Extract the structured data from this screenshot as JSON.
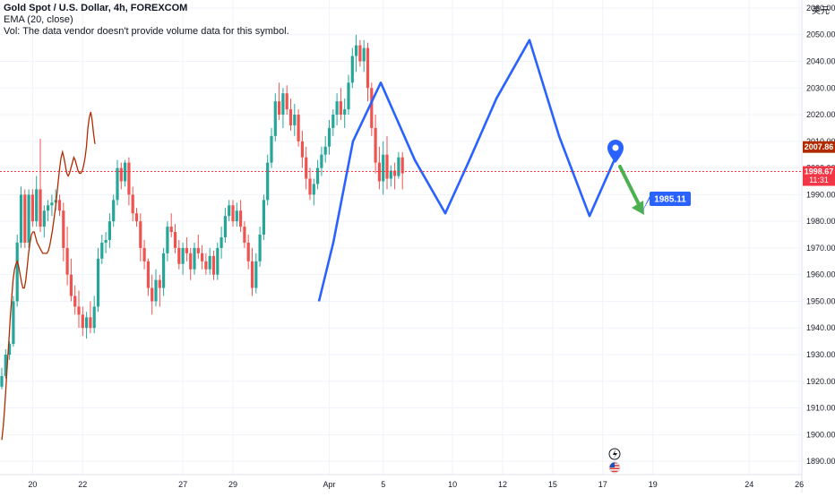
{
  "header": {
    "symbol_line": "Gold Spot / U.S. Dollar, 4h, FOREXCOM",
    "indicator_line": "EMA (20, close)",
    "volume_note": "Vol: The data vendor doesn't provide volume data for this symbol.",
    "currency": "美元"
  },
  "colors": {
    "up": "#26a69a",
    "down": "#ef5350",
    "ema": "#b22a00",
    "pattern": "#2962ff",
    "arrow": "#4caf50",
    "current_price_bg": "#f23645",
    "ema_tag_bg": "#b22a00",
    "callout_bg": "#2962ff"
  },
  "chart_data": {
    "type": "candlestick",
    "symbol": "Gold Spot / U.S. Dollar",
    "timeframe": "4h",
    "ylim": [
      1885,
      2063
    ],
    "y_ticks": [
      1890,
      1900,
      1910,
      1920,
      1930,
      1940,
      1950,
      1960,
      1970,
      1980,
      1990,
      2000,
      2010,
      2020,
      2030,
      2040,
      2050,
      2060
    ],
    "x_ticks": [
      {
        "label": "20",
        "bar": 8
      },
      {
        "label": "22",
        "bar": 21
      },
      {
        "label": "27",
        "bar": 47
      },
      {
        "label": "29",
        "bar": 60
      },
      {
        "label": "Apr",
        "bar": 85
      },
      {
        "label": "5",
        "bar": 99
      },
      {
        "label": "10",
        "bar": 117
      },
      {
        "label": "12",
        "bar": 130
      },
      {
        "label": "15",
        "bar": 143
      },
      {
        "label": "17",
        "bar": 156
      },
      {
        "label": "19",
        "bar": 169
      },
      {
        "label": "24",
        "bar": 194
      },
      {
        "label": "26",
        "bar": 207
      }
    ],
    "ohlc": [
      [
        1918,
        1925,
        1917,
        1922
      ],
      [
        1922,
        1932,
        1921,
        1930
      ],
      [
        1930,
        1935,
        1928,
        1934
      ],
      [
        1934,
        1952,
        1933,
        1950
      ],
      [
        1950,
        1975,
        1948,
        1972
      ],
      [
        1972,
        1993,
        1970,
        1990
      ],
      [
        1990,
        1992,
        1970,
        1972
      ],
      [
        1972,
        1992,
        1970,
        1990
      ],
      [
        1990,
        1992,
        1978,
        1980
      ],
      [
        1980,
        1997,
        1978,
        1992
      ],
      [
        1992,
        2011,
        1976,
        1978
      ],
      [
        1978,
        1986,
        1974,
        1984
      ],
      [
        1984,
        1988,
        1980,
        1986
      ],
      [
        1986,
        1990,
        1982,
        1987
      ],
      [
        1987,
        1992,
        1984,
        1988
      ],
      [
        1988,
        1990,
        1982,
        1984
      ],
      [
        1984,
        1987,
        1965,
        1970
      ],
      [
        1970,
        1978,
        1956,
        1960
      ],
      [
        1960,
        1966,
        1950,
        1952
      ],
      [
        1952,
        1956,
        1945,
        1948
      ],
      [
        1948,
        1954,
        1940,
        1945
      ],
      [
        1945,
        1948,
        1937,
        1940
      ],
      [
        1940,
        1946,
        1936,
        1944
      ],
      [
        1944,
        1950,
        1938,
        1940
      ],
      [
        1940,
        1952,
        1938,
        1948
      ],
      [
        1948,
        1970,
        1946,
        1966
      ],
      [
        1966,
        1975,
        1964,
        1972
      ],
      [
        1972,
        1976,
        1968,
        1973
      ],
      [
        1973,
        1983,
        1970,
        1980
      ],
      [
        1980,
        1990,
        1978,
        1988
      ],
      [
        1988,
        2003,
        1986,
        2000
      ],
      [
        2000,
        2002,
        1992,
        1995
      ],
      [
        1995,
        2003,
        1993,
        2002
      ],
      [
        2002,
        2004,
        1986,
        1990
      ],
      [
        1990,
        1993,
        1980,
        1983
      ],
      [
        1983,
        1985,
        1978,
        1980
      ],
      [
        1980,
        1983,
        1965,
        1970
      ],
      [
        1970,
        1973,
        1962,
        1965
      ],
      [
        1965,
        1966,
        1952,
        1955
      ],
      [
        1955,
        1960,
        1945,
        1950
      ],
      [
        1950,
        1962,
        1948,
        1958
      ],
      [
        1958,
        1960,
        1948,
        1955
      ],
      [
        1955,
        1970,
        1952,
        1968
      ],
      [
        1968,
        1980,
        1965,
        1978
      ],
      [
        1978,
        1983,
        1974,
        1976
      ],
      [
        1976,
        1979,
        1968,
        1970
      ],
      [
        1970,
        1973,
        1962,
        1964
      ],
      [
        1964,
        1972,
        1960,
        1970
      ],
      [
        1970,
        1974,
        1965,
        1968
      ],
      [
        1968,
        1970,
        1958,
        1962
      ],
      [
        1962,
        1972,
        1960,
        1970
      ],
      [
        1970,
        1975,
        1966,
        1968
      ],
      [
        1968,
        1971,
        1962,
        1965
      ],
      [
        1965,
        1968,
        1960,
        1962
      ],
      [
        1962,
        1970,
        1960,
        1967
      ],
      [
        1967,
        1969,
        1958,
        1960
      ],
      [
        1960,
        1972,
        1958,
        1970
      ],
      [
        1970,
        1978,
        1966,
        1974
      ],
      [
        1974,
        1985,
        1972,
        1982
      ],
      [
        1982,
        1988,
        1980,
        1986
      ],
      [
        1986,
        1988,
        1978,
        1980
      ],
      [
        1980,
        1987,
        1978,
        1984
      ],
      [
        1984,
        1988,
        1976,
        1978
      ],
      [
        1978,
        1980,
        1970,
        1972
      ],
      [
        1972,
        1975,
        1962,
        1965
      ],
      [
        1965,
        1970,
        1952,
        1955
      ],
      [
        1955,
        1968,
        1953,
        1965
      ],
      [
        1965,
        1978,
        1963,
        1975
      ],
      [
        1975,
        1990,
        1973,
        1988
      ],
      [
        1988,
        2005,
        1986,
        2002
      ],
      [
        2002,
        2015,
        2000,
        2012
      ],
      [
        2012,
        2028,
        2010,
        2025
      ],
      [
        2025,
        2032,
        2018,
        2020
      ],
      [
        2020,
        2030,
        2015,
        2028
      ],
      [
        2028,
        2031,
        2020,
        2022
      ],
      [
        2022,
        2026,
        2014,
        2016
      ],
      [
        2016,
        2024,
        2012,
        2020
      ],
      [
        2020,
        2022,
        2008,
        2010
      ],
      [
        2010,
        2014,
        2000,
        2004
      ],
      [
        2004,
        2008,
        1992,
        1996
      ],
      [
        1996,
        2000,
        1988,
        1990
      ],
      [
        1990,
        1996,
        1986,
        1994
      ],
      [
        1994,
        2003,
        1992,
        2000
      ],
      [
        2000,
        2008,
        1997,
        2005
      ],
      [
        2005,
        2012,
        2002,
        2008
      ],
      [
        2008,
        2018,
        2005,
        2015
      ],
      [
        2015,
        2022,
        2012,
        2020
      ],
      [
        2020,
        2028,
        2016,
        2025
      ],
      [
        2025,
        2030,
        2018,
        2020
      ],
      [
        2020,
        2026,
        2015,
        2022
      ],
      [
        2022,
        2035,
        2020,
        2032
      ],
      [
        2032,
        2045,
        2030,
        2042
      ],
      [
        2042,
        2050,
        2036,
        2046
      ],
      [
        2046,
        2048,
        2038,
        2040
      ],
      [
        2040,
        2048,
        2036,
        2045
      ],
      [
        2045,
        2047,
        2025,
        2030
      ],
      [
        2030,
        2032,
        2012,
        2015
      ],
      [
        2015,
        2020,
        1998,
        2002
      ],
      [
        2002,
        2008,
        1992,
        1995
      ],
      [
        1995,
        2010,
        1990,
        2005
      ],
      [
        2005,
        2012,
        1992,
        1996
      ],
      [
        1996,
        2001,
        1993,
        1999
      ],
      [
        1999,
        2002,
        1992,
        1997
      ],
      [
        1997,
        2006,
        1996,
        2004
      ],
      [
        2004,
        2006,
        1992,
        1998
      ]
    ],
    "ema": [
      1898,
      1903,
      1910,
      1918,
      1927,
      1935,
      1944,
      1951,
      1958,
      1962,
      1964,
      1965,
      1963,
      1960,
      1957,
      1955,
      1955,
      1958,
      1963,
      1968,
      1972,
      1975,
      1976,
      1976,
      1974,
      1972,
      1971,
      1970,
      1969,
      1968,
      1968,
      1968,
      1968,
      1969,
      1971,
      1974,
      1977,
      1981,
      1985,
      1990,
      1995,
      2000,
      2004,
      2006,
      2004,
      2001,
      1998,
      1997,
      1998,
      2000,
      2002,
      2004,
      2003,
      2001,
      1999,
      1998,
      1998,
      1999,
      2001,
      2004,
      2008,
      2015,
      2019,
      2021,
      2018,
      2013,
      2009
    ],
    "ema_x_step": 3.2,
    "pattern_line": [
      [
        356,
        1950
      ],
      [
        372,
        1972
      ],
      [
        394,
        2010
      ],
      [
        425,
        2032
      ],
      [
        463,
        2003
      ],
      [
        497,
        1983
      ],
      [
        524,
        2003
      ],
      [
        554,
        2026
      ],
      [
        591,
        2048
      ],
      [
        624,
        2012
      ],
      [
        658,
        1982
      ],
      [
        687,
        2004
      ]
    ],
    "pattern_line_note": "x values in page pixels of the drawn trendline vertices are handled by script",
    "current_price": {
      "value": "1998.67",
      "countdown": "11:31",
      "level": 1998.67
    },
    "ema_last": {
      "value": "2007.86",
      "level": 2007.86
    },
    "target_callout": {
      "value": "1985.11"
    }
  }
}
